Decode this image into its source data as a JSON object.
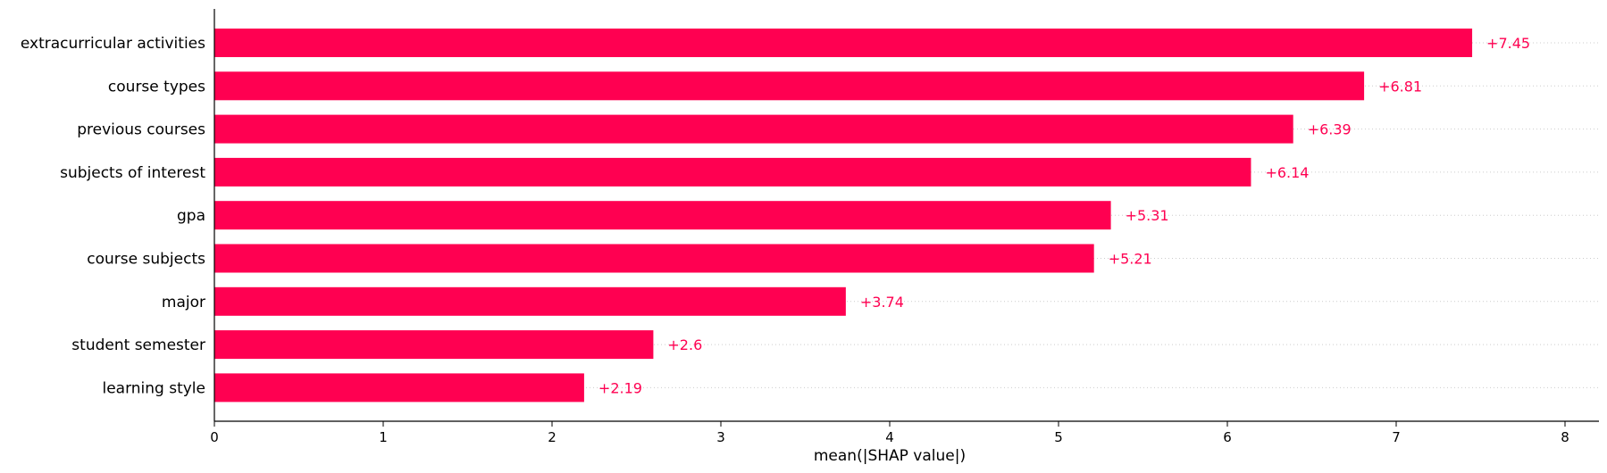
{
  "chart_data": {
    "type": "bar",
    "orientation": "horizontal",
    "categories": [
      "extracurricular activities",
      "course types",
      "previous courses",
      "subjects of interest",
      "gpa",
      "course subjects",
      "major",
      "student semester",
      "learning style"
    ],
    "values": [
      7.45,
      6.81,
      6.39,
      6.14,
      5.31,
      5.21,
      3.74,
      2.6,
      2.19
    ],
    "value_labels": [
      "+7.45",
      "+6.81",
      "+6.39",
      "+6.14",
      "+5.31",
      "+5.21",
      "+3.74",
      "+2.6",
      "+2.19"
    ],
    "xlabel": "mean(|SHAP value|)",
    "ylabel": "",
    "title": "",
    "xlim": [
      0,
      8.2
    ],
    "xticks": [
      0,
      1,
      2,
      3,
      4,
      5,
      6,
      7,
      8
    ],
    "grid": "dotted row guides",
    "colors": {
      "bar": "#ff0051",
      "value_label": "#ff0051",
      "guide": "#cccccc",
      "axis": "#000000"
    }
  }
}
